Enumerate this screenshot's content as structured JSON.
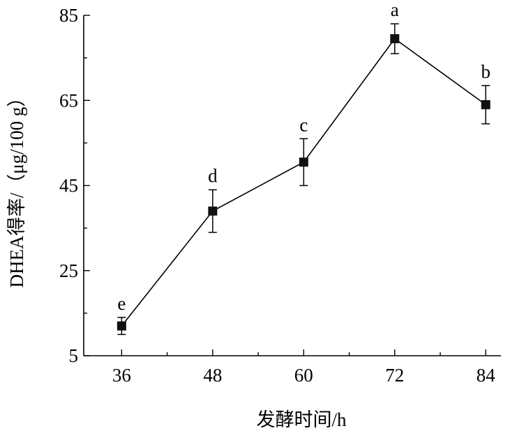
{
  "chart_data": {
    "type": "line",
    "xlabel": "发酵时间/h",
    "ylabel": "DHEA得率/（μg/100 g）",
    "xlim": [
      31,
      86
    ],
    "ylim": [
      5,
      85
    ],
    "x_ticks": [
      "36",
      "48",
      "60",
      "72",
      "84"
    ],
    "y_ticks": [
      "5",
      "25",
      "45",
      "65",
      "85"
    ],
    "grid": false,
    "series": [
      {
        "x": [
          36,
          48,
          60,
          72,
          84
        ],
        "y": [
          12,
          39,
          50.5,
          79.5,
          64
        ],
        "error": [
          2,
          5,
          5.5,
          3.5,
          4.5
        ],
        "significance": [
          "e",
          "d",
          "c",
          "a",
          "b"
        ],
        "color": "#000000",
        "marker": "square"
      }
    ]
  }
}
